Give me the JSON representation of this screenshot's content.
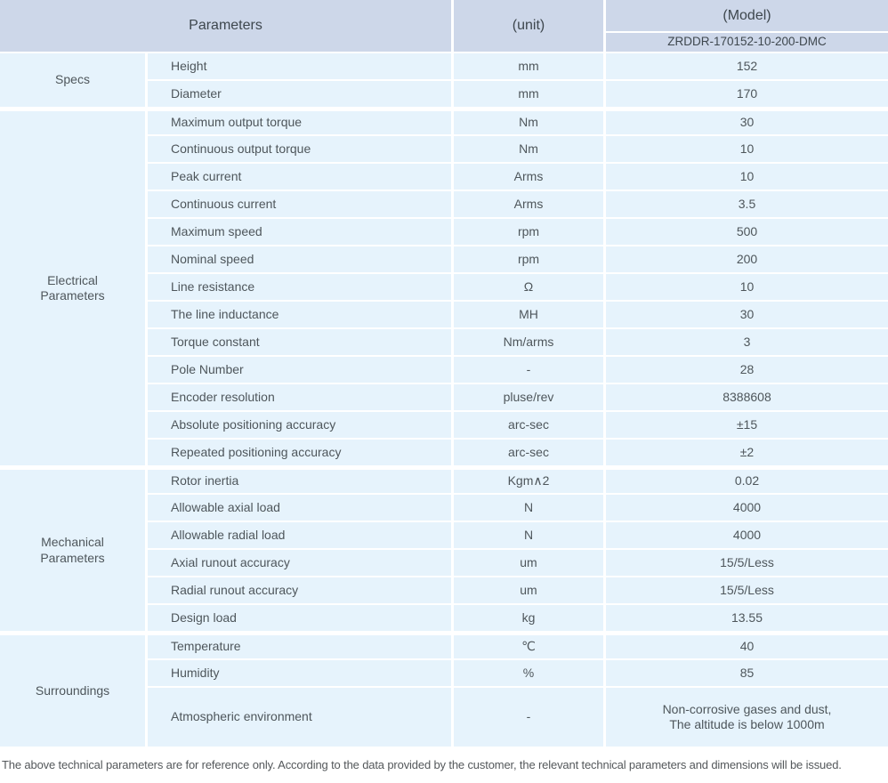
{
  "table": {
    "header": {
      "parameters_label": "Parameters",
      "unit_label": "(unit)",
      "model_label": "(Model)",
      "model_value": "ZRDDR-170152-10-200-DMC"
    },
    "groups": [
      {
        "category": "Specs",
        "rows": [
          {
            "param": "Height",
            "unit": "mm",
            "value": "152"
          },
          {
            "param": "Diameter",
            "unit": "mm",
            "value": "170"
          }
        ]
      },
      {
        "category": "Electrical Parameters",
        "rows": [
          {
            "param": "Maximum output torque",
            "unit": "Nm",
            "value": "30"
          },
          {
            "param": "Continuous output torque",
            "unit": "Nm",
            "value": "10"
          },
          {
            "param": "Peak current",
            "unit": "Arms",
            "value": "10"
          },
          {
            "param": "Continuous current",
            "unit": "Arms",
            "value": "3.5"
          },
          {
            "param": "Maximum speed",
            "unit": "rpm",
            "value": "500"
          },
          {
            "param": "Nominal speed",
            "unit": "rpm",
            "value": "200"
          },
          {
            "param": "Line resistance",
            "unit": "Ω",
            "value": "10"
          },
          {
            "param": "The line inductance",
            "unit": "MH",
            "value": "30"
          },
          {
            "param": "Torque constant",
            "unit": "Nm/arms",
            "value": "3"
          },
          {
            "param": "Pole Number",
            "unit": "-",
            "value": "28"
          },
          {
            "param": "Encoder resolution",
            "unit": "pluse/rev",
            "value": "8388608"
          },
          {
            "param": "Absolute positioning accuracy",
            "unit": "arc-sec",
            "value": "±15"
          },
          {
            "param": "Repeated positioning accuracy",
            "unit": "arc-sec",
            "value": "±2"
          }
        ]
      },
      {
        "category": "Mechanical Parameters",
        "rows": [
          {
            "param": "Rotor inertia",
            "unit": "Kgm∧2",
            "value": "0.02"
          },
          {
            "param": "Allowable axial load",
            "unit": "N",
            "value": "4000"
          },
          {
            "param": "Allowable radial load",
            "unit": "N",
            "value": "4000"
          },
          {
            "param": "Axial runout accuracy",
            "unit": "um",
            "value": "15/5/Less"
          },
          {
            "param": "Radial runout accuracy",
            "unit": "um",
            "value": "15/5/Less"
          },
          {
            "param": "Design load",
            "unit": "kg",
            "value": "13.55"
          }
        ]
      },
      {
        "category": "Surroundings",
        "rows": [
          {
            "param": "Temperature",
            "unit": "℃",
            "value": "40"
          },
          {
            "param": "Humidity",
            "unit": "%",
            "value": "85"
          },
          {
            "param": "Atmospheric environment",
            "unit": "-",
            "value": "Non-corrosive gases and dust,\nThe altitude is below 1000m"
          }
        ]
      }
    ]
  },
  "footer": {
    "note": "The above technical parameters are for reference only. According to the data provided by the customer, the relevant technical parameters and dimensions will be issued."
  },
  "colors": {
    "header_bg": "#cdd7e9",
    "row_bg": "#e6f3fc",
    "text": "#4e565b"
  }
}
